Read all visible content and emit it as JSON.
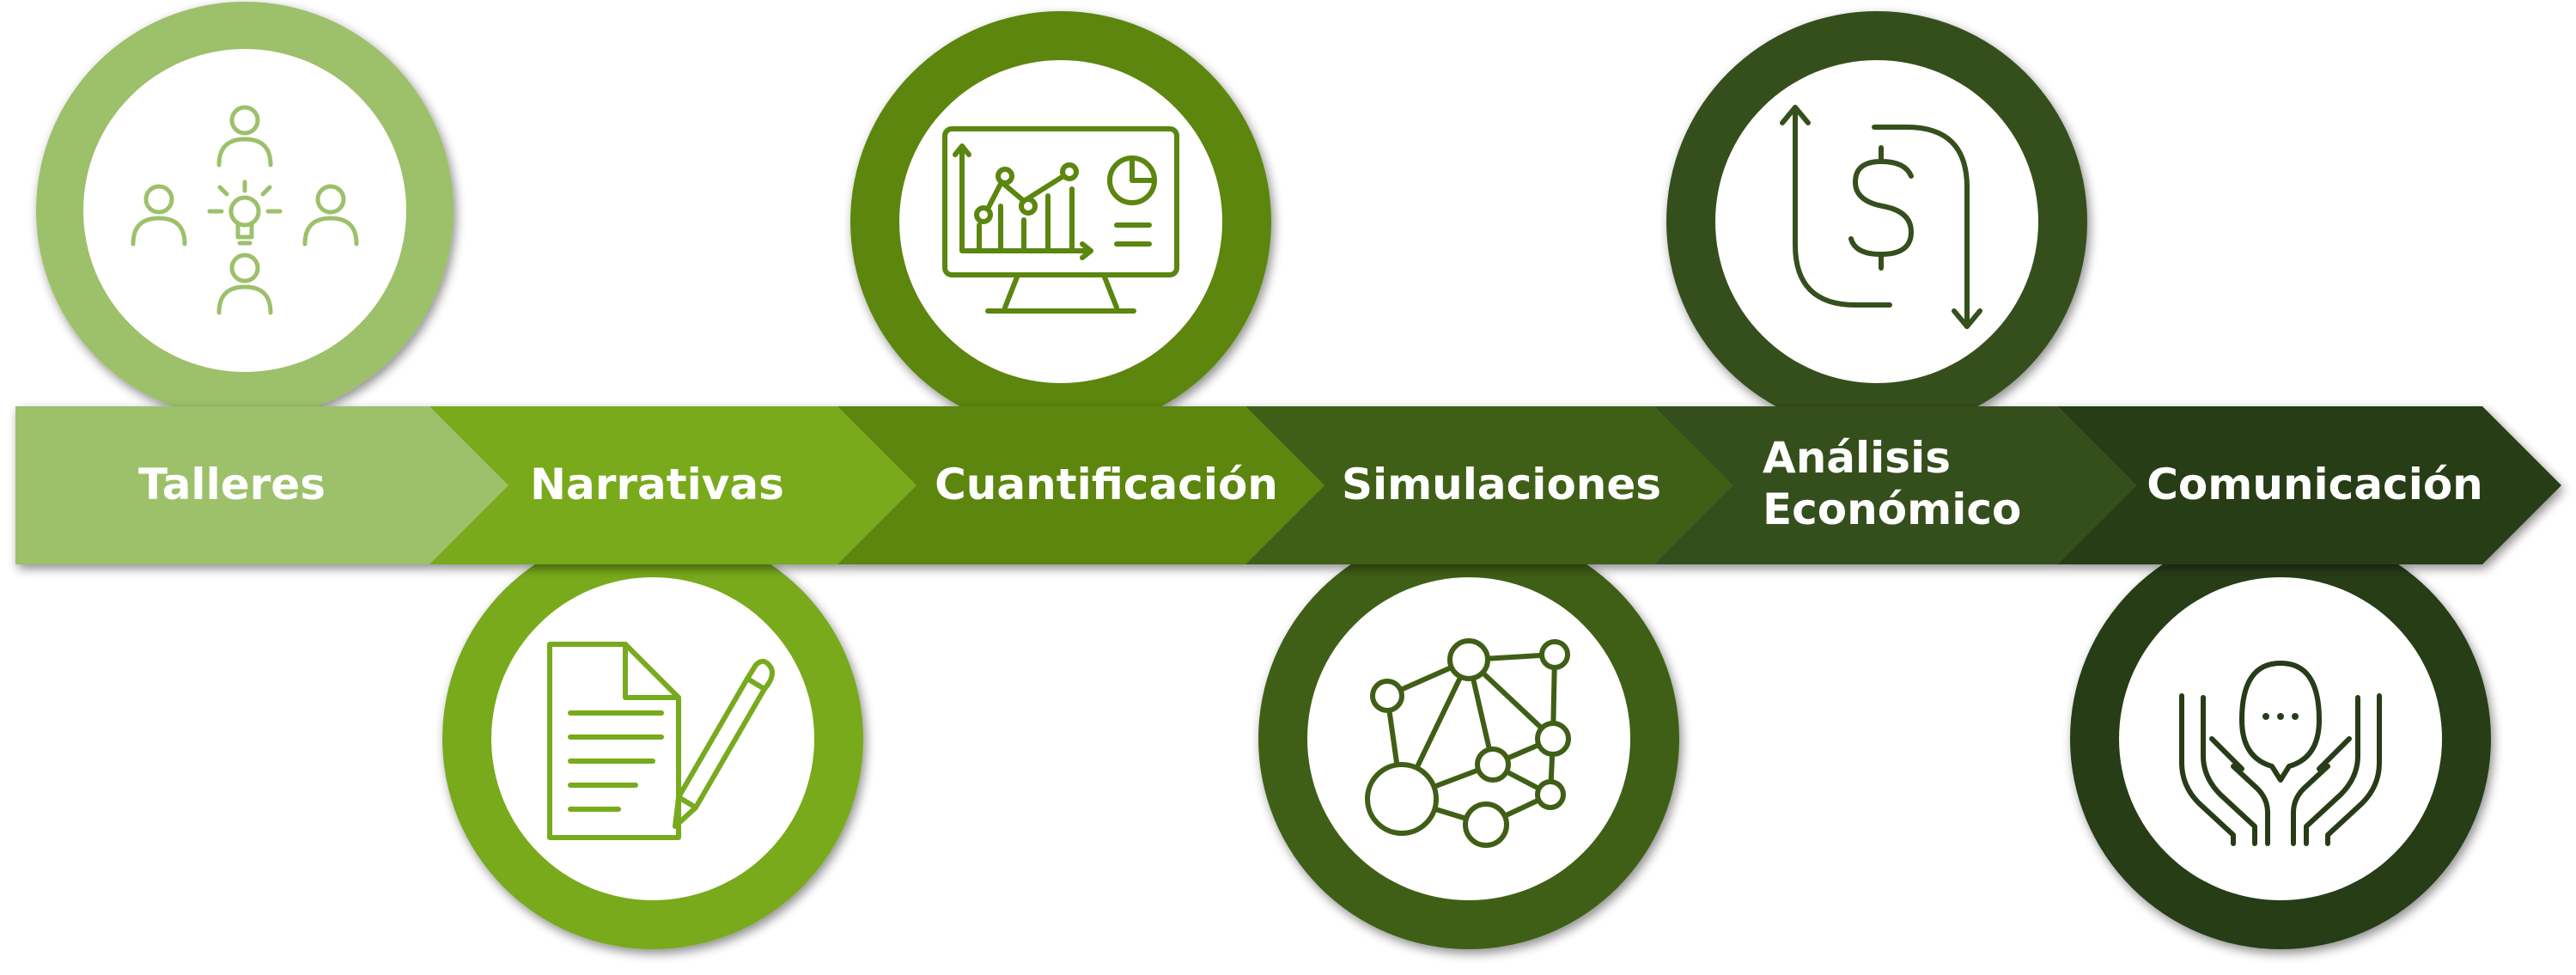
{
  "steps": [
    {
      "label_lines": [
        "Talleres"
      ],
      "color": "#9dc06b",
      "icon": "workshop-people-idea-icon",
      "circle_position": "top"
    },
    {
      "label_lines": [
        "Narrativas"
      ],
      "color": "#78aa1e",
      "icon": "document-pencil-icon",
      "circle_position": "bottom"
    },
    {
      "label_lines": [
        "Cuantificación"
      ],
      "color": "#5b860f",
      "icon": "monitor-chart-icon",
      "circle_position": "top"
    },
    {
      "label_lines": [
        "Simulaciones"
      ],
      "color": "#3f5f16",
      "icon": "network-nodes-icon",
      "circle_position": "bottom"
    },
    {
      "label_lines": [
        "Análisis",
        "Económico"
      ],
      "color": "#354f1d",
      "icon": "dollar-arrows-icon",
      "circle_position": "top"
    },
    {
      "label_lines": [
        "Comunicación"
      ],
      "color": "#283c17",
      "icon": "hands-speech-bubble-icon",
      "circle_position": "bottom"
    }
  ]
}
